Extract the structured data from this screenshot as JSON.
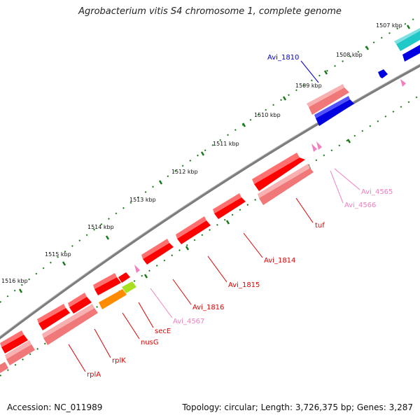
{
  "title": "Agrobacterium vitis S4 chromosome 1, complete genome",
  "footer": {
    "accession": "Accession: NC_011989",
    "stats": "Topology: circular; Length: 3,726,375 bp; Genes: 3,287"
  },
  "colors": {
    "backbone": "#7d7d7d",
    "forward_gene": "#ff0000",
    "forward_gene_light": "#f07878",
    "reverse_gene_blue": "#0000e0",
    "cyan_gene": "#20c8c8",
    "pink_small": "#f080c0",
    "orange_gene": "#ff8c00",
    "lime_gene": "#a8e020",
    "tick": "#1a7a1a"
  },
  "axis_ticks": [
    "1507 kbp",
    "1508 kbp",
    "1509 kbp",
    "1510 kbp",
    "1511 kbp",
    "1512 kbp",
    "1513 kbp",
    "1514 kbp",
    "1515 kbp",
    "1516 kbp"
  ],
  "gene_labels": [
    {
      "id": "avi1810",
      "text": "Avi_1810",
      "color": "#0000cc"
    },
    {
      "id": "avi4565",
      "text": "Avi_4565",
      "color": "#f080c0"
    },
    {
      "id": "avi4566",
      "text": "Avi_4566",
      "color": "#f080c0"
    },
    {
      "id": "tuf",
      "text": "tuf",
      "color": "#dd0000"
    },
    {
      "id": "avi1814",
      "text": "Avi_1814",
      "color": "#dd0000"
    },
    {
      "id": "avi1815",
      "text": "Avi_1815",
      "color": "#dd0000"
    },
    {
      "id": "avi1816",
      "text": "Avi_1816",
      "color": "#dd0000"
    },
    {
      "id": "avi4567",
      "text": "Avi_4567",
      "color": "#f080c0"
    },
    {
      "id": "secE",
      "text": "secE",
      "color": "#dd0000"
    },
    {
      "id": "nusG",
      "text": "nusG",
      "color": "#dd0000"
    },
    {
      "id": "rplK",
      "text": "rplK",
      "color": "#dd0000"
    },
    {
      "id": "rplA",
      "text": "rplA",
      "color": "#dd0000"
    }
  ]
}
